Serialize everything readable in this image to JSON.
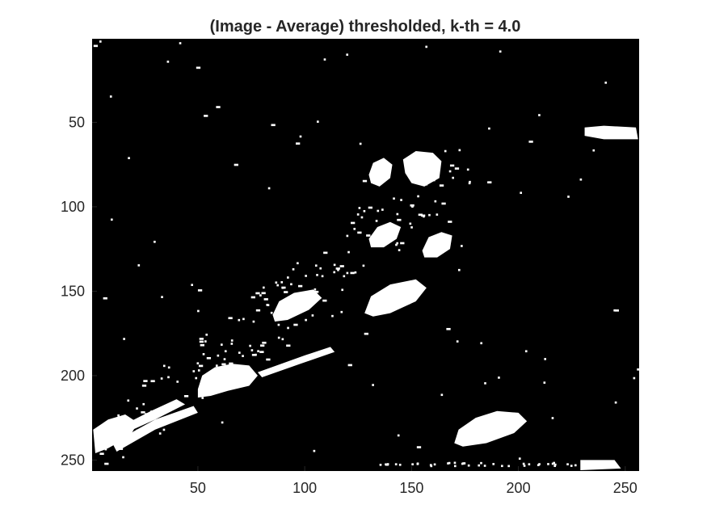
{
  "chart_data": {
    "type": "heatmap",
    "title": "(Image - Average) thresholded, k-th = 4.0",
    "xlabel": "",
    "ylabel": "",
    "colormap": "gray",
    "image_size": [
      256,
      256
    ],
    "xlim": [
      0.5,
      256.5
    ],
    "ylim": [
      0.5,
      256.5
    ],
    "y_direction": "reverse",
    "x_ticks": [
      50,
      100,
      150,
      200,
      250
    ],
    "y_ticks": [
      50,
      100,
      150,
      200,
      250
    ],
    "x_tick_labels": [
      "50",
      "100",
      "150",
      "200",
      "250"
    ],
    "y_tick_labels": [
      "50",
      "100",
      "150",
      "200",
      "250"
    ],
    "background_value": 0,
    "foreground_value": 1,
    "colors": {
      "background": "#000000",
      "foreground": "#ffffff",
      "figure": "#ffffff",
      "text": "#262626"
    }
  }
}
